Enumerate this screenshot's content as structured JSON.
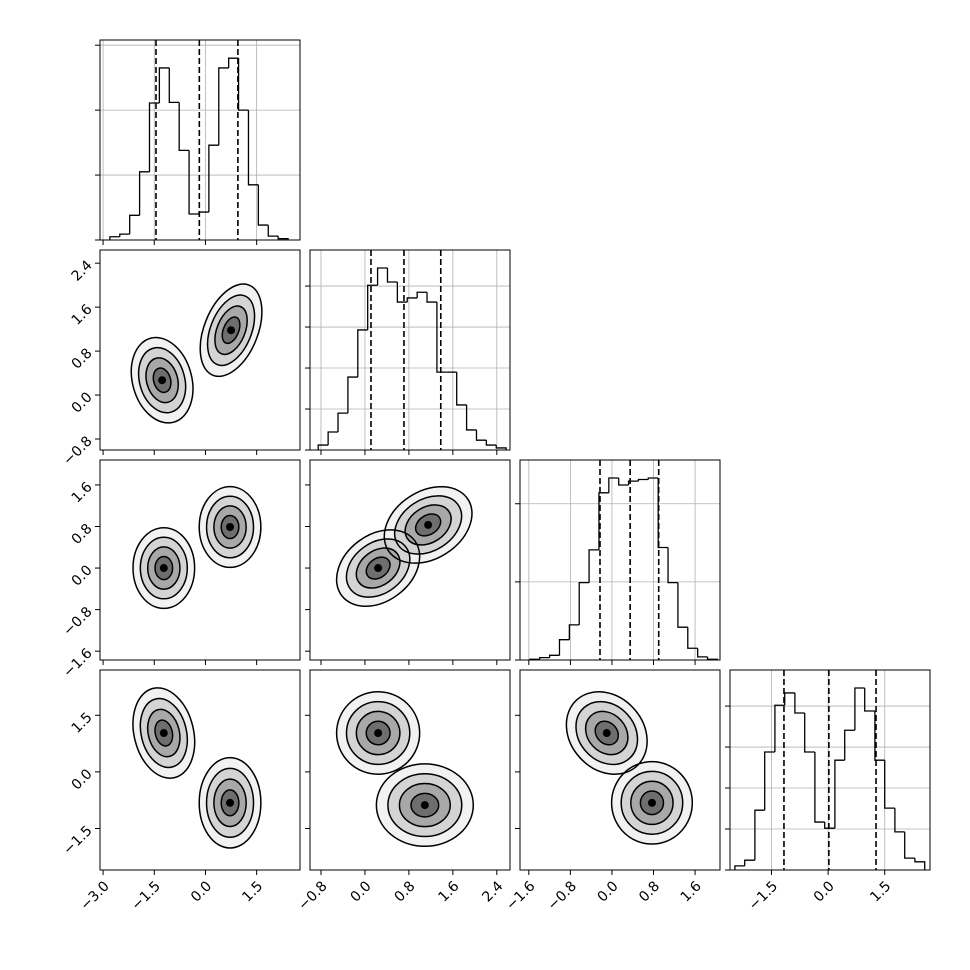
{
  "chart_data": {
    "type": "corner",
    "grid": true,
    "levels": [
      0.6,
      1.1,
      1.6,
      2.1
    ],
    "params": [
      {
        "lim": [
          -3.09,
          2.77
        ],
        "ticks": [
          {
            "value": -3,
            "label": "−3.0"
          },
          {
            "value": -1.5,
            "label": "−1.5"
          },
          {
            "value": 0,
            "label": "0.0"
          },
          {
            "value": 1.5,
            "label": "1.5"
          }
        ],
        "quantiles": [
          -1.45,
          -0.18,
          0.95
        ],
        "hist": {
          "bins": [
            -2.8,
            -2.51,
            -2.22,
            -1.93,
            -1.64,
            -1.35,
            -1.06,
            -0.77,
            -0.48,
            -0.19,
            0.1,
            0.39,
            0.68,
            0.97,
            1.26,
            1.55,
            1.84,
            2.13,
            2.42
          ],
          "counts": [
            0.05,
            0.09,
            0.38,
            1.05,
            2.11,
            2.65,
            2.12,
            1.38,
            0.4,
            0.43,
            1.46,
            2.65,
            2.8,
            2.0,
            0.85,
            0.23,
            0.06,
            0.02
          ],
          "ylim": [
            0,
            3.08
          ],
          "yticks": [
            0,
            1,
            2,
            3
          ]
        }
      },
      {
        "lim": [
          -1.0,
          2.64
        ],
        "ticks": [
          {
            "value": -0.8,
            "label": "−0.8"
          },
          {
            "value": 0,
            "label": "0.0"
          },
          {
            "value": 0.8,
            "label": "0.8"
          },
          {
            "value": 1.6,
            "label": "1.6"
          },
          {
            "value": 2.4,
            "label": "2.4"
          }
        ],
        "quantiles": [
          0.11,
          0.71,
          1.38
        ],
        "hist": {
          "bins": [
            -0.85,
            -0.67,
            -0.49,
            -0.31,
            -0.13,
            0.05,
            0.23,
            0.41,
            0.59,
            0.77,
            0.95,
            1.13,
            1.31,
            1.49,
            1.67,
            1.85,
            2.03,
            2.21,
            2.39,
            2.57
          ],
          "counts": [
            0.12,
            0.44,
            0.9,
            1.78,
            2.93,
            4.02,
            4.44,
            4.1,
            3.61,
            3.71,
            3.85,
            3.61,
            1.9,
            1.9,
            1.1,
            0.49,
            0.24,
            0.12,
            0.05
          ],
          "ylim": [
            0,
            4.88
          ],
          "yticks": [
            0,
            1,
            2,
            3,
            4
          ]
        }
      },
      {
        "lim": [
          -1.77,
          2.08
        ],
        "ticks": [
          {
            "value": -1.6,
            "label": "−1.6"
          },
          {
            "value": -0.8,
            "label": "−0.8"
          },
          {
            "value": 0,
            "label": "0.0"
          },
          {
            "value": 0.8,
            "label": "0.8"
          },
          {
            "value": 1.6,
            "label": "1.6"
          }
        ],
        "quantiles": [
          -0.23,
          0.35,
          0.9
        ],
        "hist": {
          "bins": [
            -1.58,
            -1.39,
            -1.2,
            -1.01,
            -0.82,
            -0.63,
            -0.44,
            -0.25,
            -0.06,
            0.13,
            0.32,
            0.51,
            0.7,
            0.89,
            1.08,
            1.27,
            1.46,
            1.65,
            1.84,
            2.03
          ],
          "counts": [
            0.01,
            0.03,
            0.06,
            0.26,
            0.45,
            0.99,
            1.41,
            2.14,
            2.33,
            2.24,
            2.29,
            2.31,
            2.33,
            1.44,
            0.99,
            0.42,
            0.15,
            0.04,
            0.01
          ],
          "ylim": [
            0,
            2.56
          ],
          "yticks": [
            0,
            1,
            2
          ]
        }
      },
      {
        "lim": [
          -2.6,
          2.7
        ],
        "ticks": [
          {
            "value": -1.5,
            "label": "−1.5"
          },
          {
            "value": 0,
            "label": "0.0"
          },
          {
            "value": 1.5,
            "label": "1.5"
          }
        ],
        "quantiles": [
          -1.17,
          0.02,
          1.27
        ],
        "hist": {
          "bins": [
            -2.47,
            -2.21,
            -1.94,
            -1.68,
            -1.41,
            -1.15,
            -0.88,
            -0.62,
            -0.35,
            -0.09,
            0.18,
            0.44,
            0.71,
            0.97,
            1.24,
            1.5,
            1.77,
            2.03,
            2.3,
            2.56
          ],
          "counts": [
            0.1,
            0.24,
            1.46,
            2.88,
            4.02,
            4.32,
            3.83,
            2.88,
            1.17,
            1.02,
            2.68,
            3.41,
            4.44,
            3.88,
            2.68,
            1.51,
            0.93,
            0.29,
            0.2
          ],
          "ylim": [
            0,
            4.88
          ],
          "yticks": [
            0,
            1,
            2,
            3,
            4
          ]
        }
      }
    ],
    "pairs": [
      {
        "x_param": 0,
        "y_param": 1,
        "blobs": [
          {
            "x": -1.27,
            "y": 0.27,
            "sx": 0.43,
            "sy": 0.37,
            "rho": -0.2
          },
          {
            "x": 0.75,
            "y": 1.18,
            "sx": 0.43,
            "sy": 0.4,
            "rho": 0.4
          }
        ]
      },
      {
        "x_param": 0,
        "y_param": 2,
        "blobs": [
          {
            "x": -1.22,
            "y": 0.0,
            "sx": 0.43,
            "sy": 0.37,
            "rho": 0.0
          },
          {
            "x": 0.72,
            "y": 0.79,
            "sx": 0.43,
            "sy": 0.37,
            "rho": 0.0
          }
        ]
      },
      {
        "x_param": 1,
        "y_param": 2,
        "blobs": [
          {
            "x": 0.24,
            "y": 0.0,
            "sx": 0.36,
            "sy": 0.35,
            "rho": 0.3
          },
          {
            "x": 1.15,
            "y": 0.83,
            "sx": 0.38,
            "sy": 0.35,
            "rho": 0.3
          }
        ]
      },
      {
        "x_param": 0,
        "y_param": 3,
        "blobs": [
          {
            "x": -1.22,
            "y": 1.03,
            "sx": 0.43,
            "sy": 0.57,
            "rho": -0.2
          },
          {
            "x": 0.72,
            "y": -0.82,
            "sx": 0.43,
            "sy": 0.57,
            "rho": 0.0
          }
        ]
      },
      {
        "x_param": 1,
        "y_param": 3,
        "blobs": [
          {
            "x": 0.24,
            "y": 1.03,
            "sx": 0.36,
            "sy": 0.52,
            "rho": 0.0
          },
          {
            "x": 1.09,
            "y": -0.88,
            "sx": 0.42,
            "sy": 0.52,
            "rho": 0.0
          }
        ]
      },
      {
        "x_param": 2,
        "y_param": 3,
        "blobs": [
          {
            "x": -0.1,
            "y": 1.03,
            "sx": 0.37,
            "sy": 0.52,
            "rho": -0.2
          },
          {
            "x": 0.77,
            "y": -0.82,
            "sx": 0.37,
            "sy": 0.52,
            "rho": 0.0
          }
        ]
      }
    ]
  }
}
